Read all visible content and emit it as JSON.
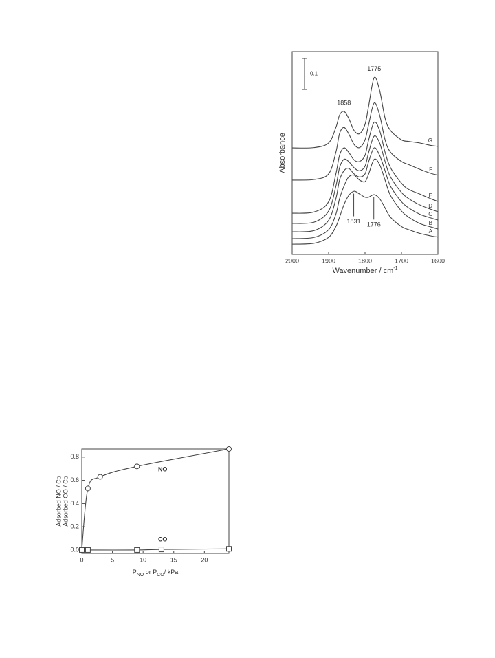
{
  "chart_data": [
    {
      "type": "line",
      "x_label_parts": [
        "Wavenumber  /  cm",
        "-1"
      ],
      "x_label_script": "super",
      "y_label": "Absorbance",
      "xlim": [
        2000,
        1600
      ],
      "xticks": [
        2000,
        1900,
        1800,
        1700,
        1600
      ],
      "ylim": [
        0,
        0.655
      ],
      "scale_bar": {
        "value": 0.1,
        "label": "0.1"
      },
      "peaks_top": [
        1858,
        1775
      ],
      "peaks_bottom": [
        1831,
        1776
      ],
      "x": [
        2000,
        1940,
        1900,
        1880,
        1870,
        1858,
        1845,
        1830,
        1815,
        1800,
        1790,
        1775,
        1760,
        1745,
        1730,
        1700,
        1680,
        1650,
        1620,
        1600
      ],
      "series": [
        {
          "name": "G",
          "color": "#444",
          "values": [
            0.344,
            0.345,
            0.36,
            0.41,
            0.45,
            0.462,
            0.44,
            0.4,
            0.39,
            0.42,
            0.48,
            0.571,
            0.53,
            0.44,
            0.4,
            0.37,
            0.365,
            0.36,
            0.352,
            0.349
          ]
        },
        {
          "name": "F",
          "color": "#444",
          "values": [
            0.24,
            0.242,
            0.26,
            0.33,
            0.39,
            0.41,
            0.39,
            0.355,
            0.345,
            0.37,
            0.42,
            0.489,
            0.45,
            0.37,
            0.33,
            0.3,
            0.29,
            0.275,
            0.262,
            0.256
          ]
        },
        {
          "name": "E",
          "color": "#444",
          "values": [
            0.133,
            0.137,
            0.17,
            0.26,
            0.32,
            0.344,
            0.33,
            0.305,
            0.3,
            0.32,
            0.37,
            0.427,
            0.4,
            0.33,
            0.28,
            0.23,
            0.21,
            0.195,
            0.18,
            0.171
          ]
        },
        {
          "name": "D",
          "color": "#444",
          "values": [
            0.1,
            0.104,
            0.14,
            0.22,
            0.28,
            0.307,
            0.3,
            0.28,
            0.27,
            0.285,
            0.33,
            0.382,
            0.36,
            0.3,
            0.25,
            0.2,
            0.18,
            0.16,
            0.146,
            0.138
          ]
        },
        {
          "name": "C",
          "color": "#444",
          "values": [
            0.073,
            0.077,
            0.11,
            0.18,
            0.24,
            0.27,
            0.278,
            0.26,
            0.25,
            0.26,
            0.3,
            0.344,
            0.32,
            0.27,
            0.22,
            0.17,
            0.15,
            0.13,
            0.118,
            0.111
          ]
        },
        {
          "name": "B",
          "color": "#444",
          "values": [
            0.051,
            0.055,
            0.08,
            0.13,
            0.18,
            0.22,
            0.25,
            0.256,
            0.24,
            0.235,
            0.26,
            0.307,
            0.29,
            0.24,
            0.19,
            0.14,
            0.12,
            0.1,
            0.089,
            0.082
          ]
        },
        {
          "name": "A",
          "color": "#444",
          "values": [
            0.033,
            0.036,
            0.055,
            0.09,
            0.12,
            0.16,
            0.19,
            0.204,
            0.195,
            0.185,
            0.185,
            0.193,
            0.18,
            0.15,
            0.12,
            0.09,
            0.08,
            0.068,
            0.06,
            0.056
          ]
        }
      ]
    },
    {
      "type": "scatter",
      "x_label_parts": [
        "P",
        "NO",
        " or P",
        "CO",
        "/ kPa"
      ],
      "x_label_script": "sub",
      "y_label": [
        "Adsorbed NO / Co",
        "Adsorbed CO / Co"
      ],
      "xlim": [
        0,
        24
      ],
      "xticks": [
        0,
        5,
        10,
        15,
        20
      ],
      "ylim": [
        -0.03,
        0.87
      ],
      "yticks": [
        {
          "value": 0,
          "label": "0.0"
        },
        0.2,
        0.4,
        0.6,
        0.8
      ],
      "series": [
        {
          "name": "NO",
          "color": "#444",
          "marker": "circle",
          "x": [
            0,
            1,
            3,
            9,
            24
          ],
          "values": [
            0,
            0.53,
            0.63,
            0.72,
            0.87
          ]
        },
        {
          "name": "CO",
          "color": "#444",
          "marker": "square",
          "x": [
            0,
            1,
            9,
            13,
            24
          ],
          "values": [
            0,
            0,
            0,
            0.005,
            0.01
          ]
        }
      ]
    }
  ]
}
